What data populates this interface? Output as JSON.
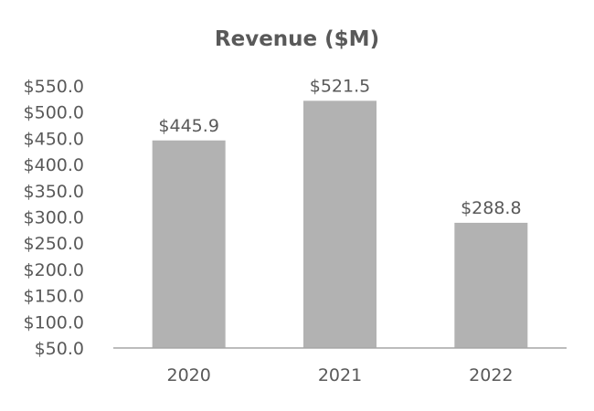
{
  "chart_data": {
    "type": "bar",
    "title": "Revenue ($M)",
    "xlabel": "",
    "ylabel": "",
    "categories": [
      "2020",
      "2021",
      "2022"
    ],
    "values": [
      445.9,
      521.5,
      288.8
    ],
    "data_labels": [
      "$445.9",
      "$521.5",
      "$288.8"
    ],
    "ylim": [
      50,
      550
    ],
    "y_ticks": [
      50,
      100,
      150,
      200,
      250,
      300,
      350,
      400,
      450,
      500,
      550
    ],
    "y_tick_labels": [
      "$50.0",
      "$100.0",
      "$150.0",
      "$200.0",
      "$250.0",
      "$300.0",
      "$350.0",
      "$400.0",
      "$450.0",
      "$500.0",
      "$550.0"
    ],
    "grid": false,
    "legend": "none",
    "colors": {
      "bar": "#b2b2b2",
      "text": "#595959",
      "axis": "#a6a6a6"
    }
  }
}
